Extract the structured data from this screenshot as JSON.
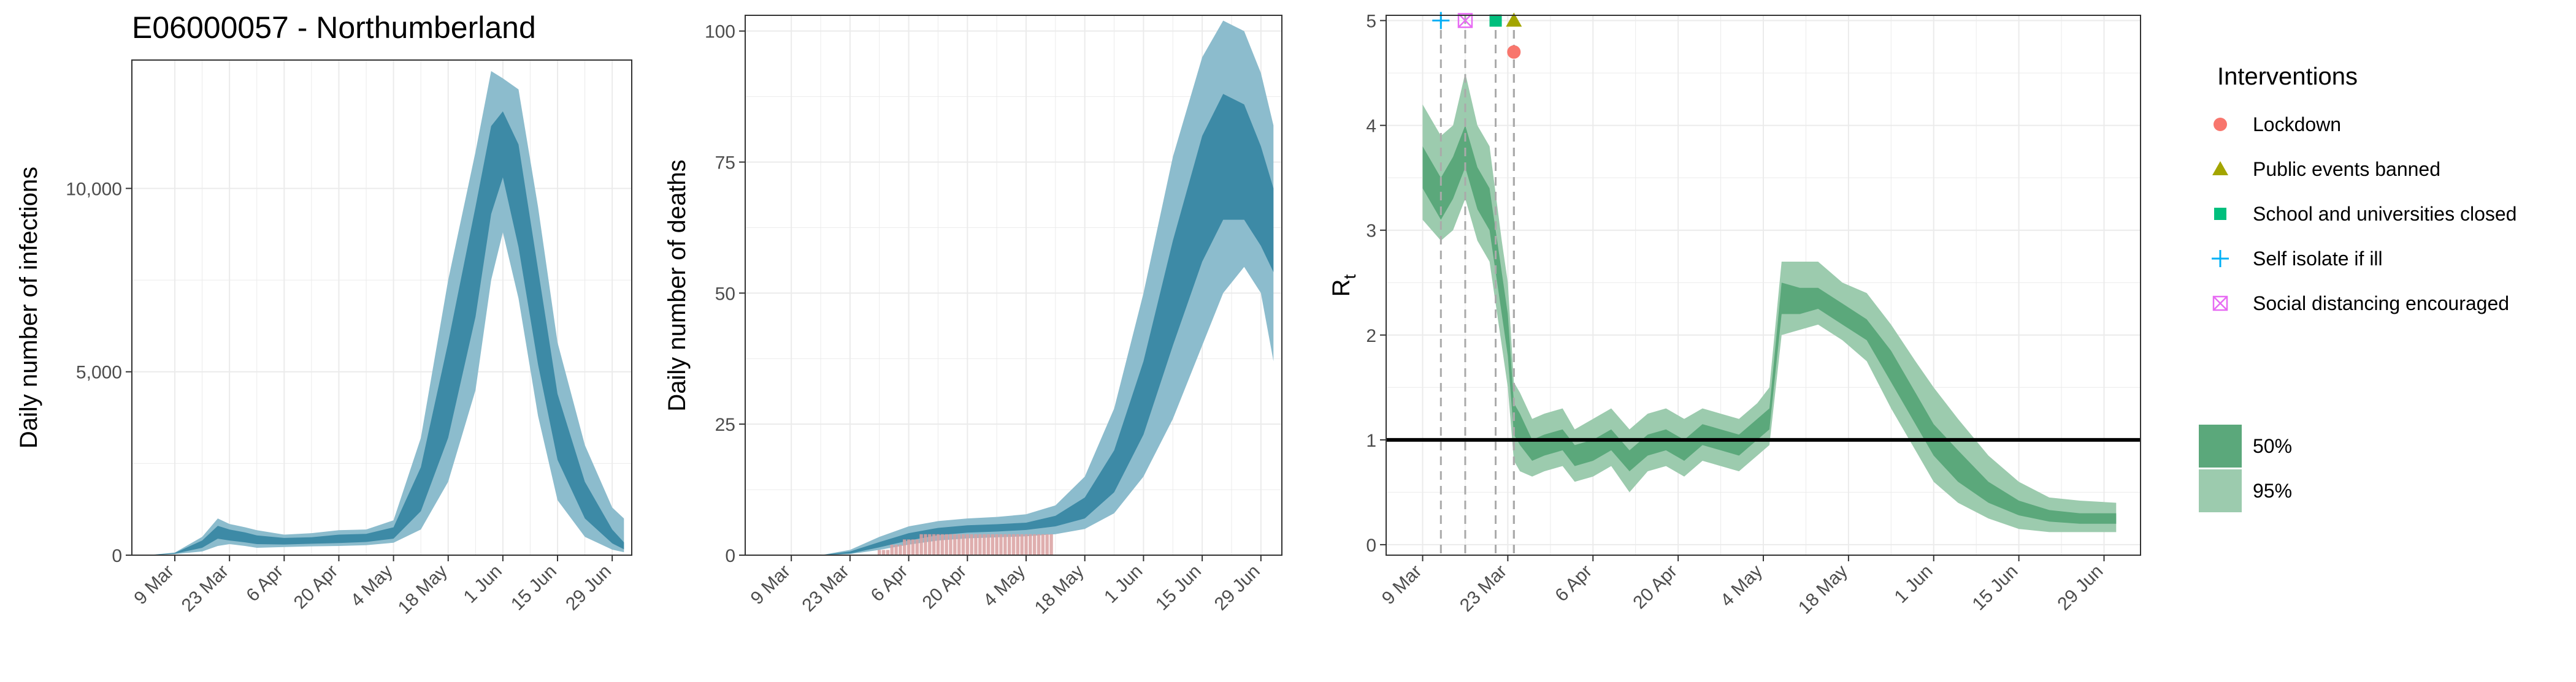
{
  "figure_title": "E06000057 - Northumberland",
  "colors": {
    "ci95_blue": "#8cbccd",
    "ci50_blue": "#3d8aa6",
    "obs_bars": "#d9a0a0",
    "ci95_green": "#9ccbae",
    "ci50_green": "#5ba87b",
    "grid": "#ebebeb",
    "threshold_line": "#000000",
    "lockdown": "#f8766d",
    "public_events": "#a3a500",
    "schools": "#00bf7d",
    "self_isolate": "#00b0f6",
    "social_distancing": "#e76bf3"
  },
  "x_ticks": [
    "9 Mar",
    "23 Mar",
    "6 Apr",
    "20 Apr",
    "4 May",
    "18 May",
    "1 Jun",
    "15 Jun",
    "29 Jun"
  ],
  "legend": {
    "interventions_title": "Interventions",
    "interventions": [
      {
        "label": "Lockdown",
        "symbol": "circle",
        "color": "#f8766d"
      },
      {
        "label": "Public events banned",
        "symbol": "triangle",
        "color": "#a3a500"
      },
      {
        "label": "School and universities closed",
        "symbol": "square",
        "color": "#00bf7d"
      },
      {
        "label": "Self isolate if ill",
        "symbol": "plus",
        "color": "#00b0f6"
      },
      {
        "label": "Social distancing encouraged",
        "symbol": "boxx",
        "color": "#e76bf3"
      }
    ],
    "ci": [
      {
        "label": "50%",
        "color": "#5ba87b"
      },
      {
        "label": "95%",
        "color": "#9ccbae"
      }
    ]
  },
  "chart_data": [
    {
      "type": "area",
      "title": "E06000057 - Northumberland",
      "xlabel": "",
      "ylabel": "Daily number of infections",
      "xlim": [
        "2020-02-27",
        "2020-07-04"
      ],
      "ylim": [
        0,
        13500
      ],
      "yticks": [
        0,
        5000,
        10000
      ],
      "ytick_labels": [
        "0",
        "5,000",
        "10,000"
      ],
      "x": [
        "2020-03-02",
        "2020-03-09",
        "2020-03-16",
        "2020-03-20",
        "2020-03-23",
        "2020-03-27",
        "2020-03-30",
        "2020-04-06",
        "2020-04-13",
        "2020-04-20",
        "2020-04-27",
        "2020-05-04",
        "2020-05-11",
        "2020-05-18",
        "2020-05-25",
        "2020-05-29",
        "2020-06-01",
        "2020-06-05",
        "2020-06-10",
        "2020-06-15",
        "2020-06-22",
        "2020-06-29",
        "2020-07-02"
      ],
      "series": [
        {
          "values": [
            0,
            50,
            300,
            600,
            550,
            480,
            420,
            380,
            400,
            450,
            470,
            600,
            1800,
            4500,
            8000,
            10500,
            11200,
            9800,
            6500,
            3500,
            1500,
            500,
            250
          ]
        },
        {
          "values": [
            0,
            40,
            200,
            450,
            400,
            350,
            300,
            290,
            310,
            330,
            360,
            450,
            1200,
            3200,
            6500,
            9300,
            10300,
            8400,
            5200,
            2600,
            1000,
            320,
            160
          ]
        },
        {
          "values": [
            0,
            60,
            400,
            800,
            700,
            620,
            540,
            470,
            490,
            560,
            580,
            760,
            2400,
            5800,
            9500,
            11700,
            12100,
            11200,
            7800,
            4400,
            2000,
            700,
            350
          ]
        },
        {
          "values": [
            0,
            30,
            100,
            250,
            300,
            250,
            200,
            220,
            240,
            250,
            270,
            340,
            700,
            2000,
            4500,
            7500,
            8800,
            7000,
            3800,
            1500,
            500,
            150,
            80
          ]
        },
        {
          "values": [
            0,
            70,
            500,
            1000,
            850,
            760,
            680,
            560,
            600,
            680,
            700,
            950,
            3200,
            7500,
            11000,
            13200,
            13000,
            12700,
            9500,
            5800,
            3000,
            1300,
            1000
          ]
        }
      ]
    },
    {
      "type": "area",
      "xlabel": "",
      "ylabel": "Daily number of deaths",
      "xlim": [
        "2020-02-27",
        "2020-07-04"
      ],
      "ylim": [
        0,
        103
      ],
      "yticks": [
        0,
        25,
        50,
        75,
        100
      ],
      "ytick_labels": [
        "0",
        "25",
        "50",
        "75",
        "100"
      ],
      "x": [
        "2020-03-02",
        "2020-03-16",
        "2020-03-23",
        "2020-03-30",
        "2020-04-06",
        "2020-04-13",
        "2020-04-20",
        "2020-04-27",
        "2020-05-04",
        "2020-05-11",
        "2020-05-18",
        "2020-05-25",
        "2020-06-01",
        "2020-06-08",
        "2020-06-15",
        "2020-06-20",
        "2020-06-25",
        "2020-06-29",
        "2020-07-02"
      ],
      "series": [
        {
          "values": [
            0,
            0,
            0.5,
            2,
            3.5,
            4.5,
            5,
            5.2,
            5.5,
            6.5,
            9,
            16,
            30,
            50,
            68,
            76,
            75,
            68,
            62
          ]
        },
        {
          "values": [
            0,
            0,
            0.3,
            1.5,
            2.8,
            3.8,
            4.3,
            4.5,
            4.8,
            5.5,
            7,
            12,
            23,
            40,
            56,
            64,
            64,
            59,
            54
          ]
        },
        {
          "values": [
            0,
            0,
            0.7,
            2.5,
            4.2,
            5.2,
            5.7,
            5.9,
            6.2,
            7.5,
            11,
            20,
            37,
            60,
            80,
            88,
            86,
            78,
            70
          ]
        },
        {
          "values": [
            0,
            0,
            0.2,
            1,
            2,
            2.8,
            3.2,
            3.4,
            3.6,
            4,
            5,
            8,
            15,
            26,
            40,
            50,
            55,
            50,
            37
          ]
        },
        {
          "values": [
            0,
            0,
            1,
            3.5,
            5.5,
            6.5,
            7,
            7.3,
            7.8,
            9.5,
            15,
            28,
            50,
            76,
            95,
            102,
            100,
            92,
            82
          ]
        }
      ],
      "observed_deaths": {
        "x": [
          "2020-03-28",
          "2020-03-29",
          "2020-03-30",
          "2020-03-31",
          "2020-04-01",
          "2020-04-02",
          "2020-04-03",
          "2020-04-04",
          "2020-04-05",
          "2020-04-06",
          "2020-04-07",
          "2020-04-08",
          "2020-04-09",
          "2020-04-10",
          "2020-04-11",
          "2020-04-12",
          "2020-04-13",
          "2020-04-14",
          "2020-04-15",
          "2020-04-16",
          "2020-04-17",
          "2020-04-18",
          "2020-04-19",
          "2020-04-20",
          "2020-04-21",
          "2020-04-22",
          "2020-04-23",
          "2020-04-24",
          "2020-04-25",
          "2020-04-26",
          "2020-04-27",
          "2020-04-28",
          "2020-04-29",
          "2020-04-30",
          "2020-05-01",
          "2020-05-02",
          "2020-05-03",
          "2020-05-04",
          "2020-05-05",
          "2020-05-06",
          "2020-05-07",
          "2020-05-08",
          "2020-05-09",
          "2020-05-10"
        ],
        "values": [
          0,
          0,
          1,
          1,
          1,
          2,
          2,
          2,
          3,
          3,
          3,
          3,
          4,
          4,
          4,
          4,
          4,
          4,
          4,
          4,
          4,
          4,
          4,
          4,
          4,
          4,
          4,
          4,
          4,
          4,
          4,
          4,
          4,
          4,
          4,
          4,
          4,
          4,
          4,
          4,
          4,
          4,
          4,
          4
        ]
      }
    },
    {
      "type": "area",
      "xlabel": "",
      "ylabel": "R",
      "ylabel_subscript": "t",
      "xlim": [
        "2020-03-03",
        "2020-07-05"
      ],
      "ylim": [
        -0.1,
        5.05
      ],
      "yticks": [
        0,
        1,
        2,
        3,
        4,
        5
      ],
      "ytick_labels": [
        "0",
        "1",
        "2",
        "3",
        "4",
        "5"
      ],
      "threshold": 1,
      "x": [
        "2020-03-09",
        "2020-03-12",
        "2020-03-14",
        "2020-03-16",
        "2020-03-18",
        "2020-03-20",
        "2020-03-22",
        "2020-03-23",
        "2020-03-24",
        "2020-03-25",
        "2020-03-27",
        "2020-03-29",
        "2020-04-01",
        "2020-04-03",
        "2020-04-06",
        "2020-04-09",
        "2020-04-12",
        "2020-04-15",
        "2020-04-18",
        "2020-04-21",
        "2020-04-24",
        "2020-04-27",
        "2020-04-30",
        "2020-05-03",
        "2020-05-05",
        "2020-05-07",
        "2020-05-10",
        "2020-05-13",
        "2020-05-17",
        "2020-05-21",
        "2020-05-25",
        "2020-05-29",
        "2020-06-01",
        "2020-06-05",
        "2020-06-10",
        "2020-06-15",
        "2020-06-20",
        "2020-06-25",
        "2020-07-01"
      ],
      "series": [
        {
          "values": [
            3.6,
            3.3,
            3.5,
            3.8,
            3.4,
            3.2,
            2.4,
            2.0,
            1.2,
            1.1,
            0.9,
            0.95,
            1.0,
            0.85,
            0.9,
            1.0,
            0.8,
            0.95,
            1.0,
            0.9,
            1.05,
            1.0,
            0.95,
            1.1,
            1.2,
            2.35,
            2.3,
            2.35,
            2.2,
            2.05,
            1.7,
            1.3,
            1.0,
            0.75,
            0.5,
            0.35,
            0.28,
            0.26,
            0.25
          ]
        },
        {
          "values": [
            3.4,
            3.1,
            3.3,
            3.6,
            3.2,
            3.0,
            2.2,
            1.8,
            1.05,
            0.95,
            0.8,
            0.85,
            0.9,
            0.75,
            0.8,
            0.9,
            0.7,
            0.85,
            0.9,
            0.8,
            0.95,
            0.9,
            0.85,
            1.0,
            1.1,
            2.2,
            2.2,
            2.25,
            2.1,
            1.95,
            1.55,
            1.15,
            0.85,
            0.6,
            0.4,
            0.28,
            0.22,
            0.2,
            0.2
          ]
        },
        {
          "values": [
            3.8,
            3.5,
            3.7,
            4.0,
            3.6,
            3.4,
            2.6,
            2.2,
            1.35,
            1.25,
            1.0,
            1.05,
            1.1,
            0.95,
            1.0,
            1.1,
            0.9,
            1.05,
            1.1,
            1.0,
            1.15,
            1.1,
            1.05,
            1.2,
            1.3,
            2.5,
            2.45,
            2.45,
            2.3,
            2.15,
            1.85,
            1.45,
            1.15,
            0.9,
            0.6,
            0.42,
            0.33,
            0.3,
            0.3
          ]
        },
        {
          "values": [
            3.1,
            2.9,
            3.0,
            3.3,
            2.9,
            2.7,
            1.9,
            1.5,
            0.8,
            0.7,
            0.65,
            0.7,
            0.75,
            0.6,
            0.65,
            0.75,
            0.5,
            0.7,
            0.75,
            0.65,
            0.8,
            0.75,
            0.7,
            0.85,
            0.95,
            2.0,
            2.05,
            2.1,
            1.95,
            1.75,
            1.3,
            0.9,
            0.6,
            0.4,
            0.25,
            0.15,
            0.12,
            0.12,
            0.12
          ]
        },
        {
          "values": [
            4.2,
            3.9,
            4.0,
            4.5,
            4.0,
            3.8,
            2.9,
            2.5,
            1.55,
            1.45,
            1.2,
            1.25,
            1.3,
            1.1,
            1.2,
            1.3,
            1.1,
            1.25,
            1.3,
            1.2,
            1.3,
            1.25,
            1.2,
            1.35,
            1.5,
            2.7,
            2.7,
            2.7,
            2.5,
            2.4,
            2.1,
            1.75,
            1.5,
            1.2,
            0.85,
            0.6,
            0.45,
            0.42,
            0.4
          ]
        }
      ],
      "interventions": [
        {
          "name": "Self isolate if ill",
          "date": "2020-03-12",
          "y": 5.0
        },
        {
          "name": "Social distancing encouraged",
          "date": "2020-03-16",
          "y": 5.0
        },
        {
          "name": "School and universities closed",
          "date": "2020-03-21",
          "y": 5.0
        },
        {
          "name": "Public events banned",
          "date": "2020-03-24",
          "y": 5.0
        },
        {
          "name": "Lockdown",
          "date": "2020-03-24",
          "y": 4.7
        }
      ]
    }
  ]
}
